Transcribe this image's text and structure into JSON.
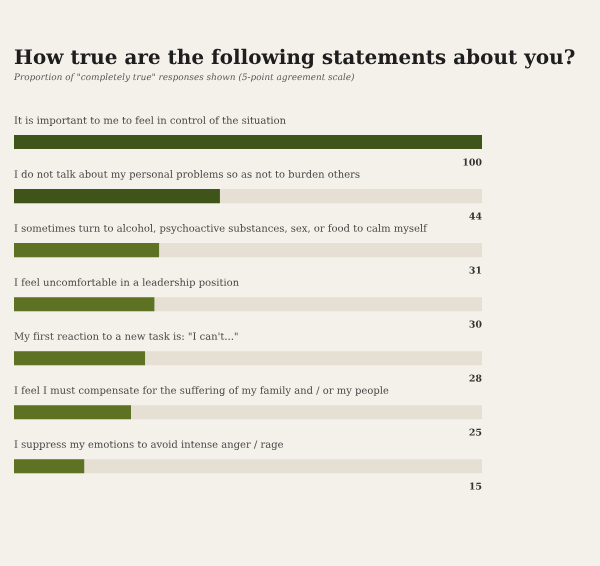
{
  "chart_data": {
    "type": "bar",
    "orientation": "horizontal",
    "title": "How true are the following statements about you?",
    "subtitle": "Proportion of \"completely true\" responses shown (5-point agreement scale)",
    "categories": [
      "It is important to me to feel in control of the situation",
      "I do not talk about my personal problems so as not to burden others",
      "I sometimes turn to alcohol, psychoactive substances, sex, or food to calm myself",
      "I feel uncomfortable in a leadership position",
      "My first reaction to a new task is: \"I can't...\"",
      "I feel I must compensate for the suffering of my family and / or my people",
      "I suppress my emotions to avoid intense anger / rage"
    ],
    "values": [
      100,
      44,
      31,
      30,
      28,
      25,
      15
    ],
    "colors": [
      "#3f5418",
      "#3f5418",
      "#5d7323",
      "#5d7323",
      "#5d7323",
      "#5d7323",
      "#5d7323"
    ],
    "xlim": [
      0,
      100
    ],
    "data_labels": true,
    "tick_labels": false,
    "grid": false,
    "legend": false
  }
}
